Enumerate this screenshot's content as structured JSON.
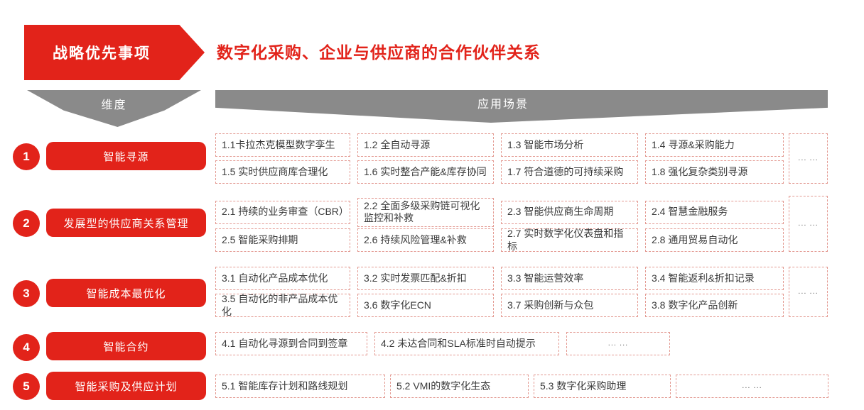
{
  "header": {
    "badge": "战略优先事项",
    "title": "数字化采购、企业与供应商的合作伙伴关系"
  },
  "banners": {
    "dimension": "维度",
    "scenarios": "应用场景"
  },
  "more_label": "... ...",
  "colors": {
    "accent_red": "#E2231A",
    "banner_gray": "#8A8A8A",
    "box_border": "#E39A92",
    "box_text": "#3A3A3A"
  },
  "groups": [
    {
      "number": "1",
      "label": "智能寻源",
      "items": {
        "r1": [
          "1.1卡拉杰克模型数字孪生",
          "1.2 全自动寻源",
          "1.3 智能市场分析",
          "1.4 寻源&采购能力"
        ],
        "r2": [
          "1.5 实时供应商库合理化",
          "1.6 实时整合产能&库存协同",
          "1.7 符合道德的可持续采购",
          "1.8 强化复杂类别寻源"
        ]
      }
    },
    {
      "number": "2",
      "label": "发展型的供应商关系管理",
      "items": {
        "r1": [
          "2.1 持续的业务审查（CBR）",
          "2.2 全面多级采购链可视化监控和补救",
          "2.3 智能供应商生命周期",
          "2.4 智慧金融服务"
        ],
        "r2": [
          "2.5 智能采购排期",
          "2.6 持续风险管理&补救",
          "2.7 实时数字化仪表盘和指标",
          "2.8 通用贸易自动化"
        ]
      }
    },
    {
      "number": "3",
      "label": "智能成本最优化",
      "items": {
        "r1": [
          "3.1 自动化产品成本优化",
          "3.2 实时发票匹配&折扣",
          "3.3 智能运营效率",
          "3.4 智能返利&折扣记录"
        ],
        "r2": [
          "3.5 自动化的非产品成本优化",
          "3.6 数字化ECN",
          "3.7 采购创新与众包",
          "3.8 数字化产品创新"
        ]
      }
    },
    {
      "number": "4",
      "label": "智能合约",
      "items": {
        "r1": [
          "4.1 自动化寻源到合同到签章",
          "4.2 未达合同和SLA标准时自动提示"
        ]
      }
    },
    {
      "number": "5",
      "label": "智能采购及供应计划",
      "items": {
        "r1": [
          "5.1 智能库存计划和路线规划",
          "5.2 VMI的数字化生态",
          "5.3 数字化采购助理"
        ]
      }
    }
  ]
}
